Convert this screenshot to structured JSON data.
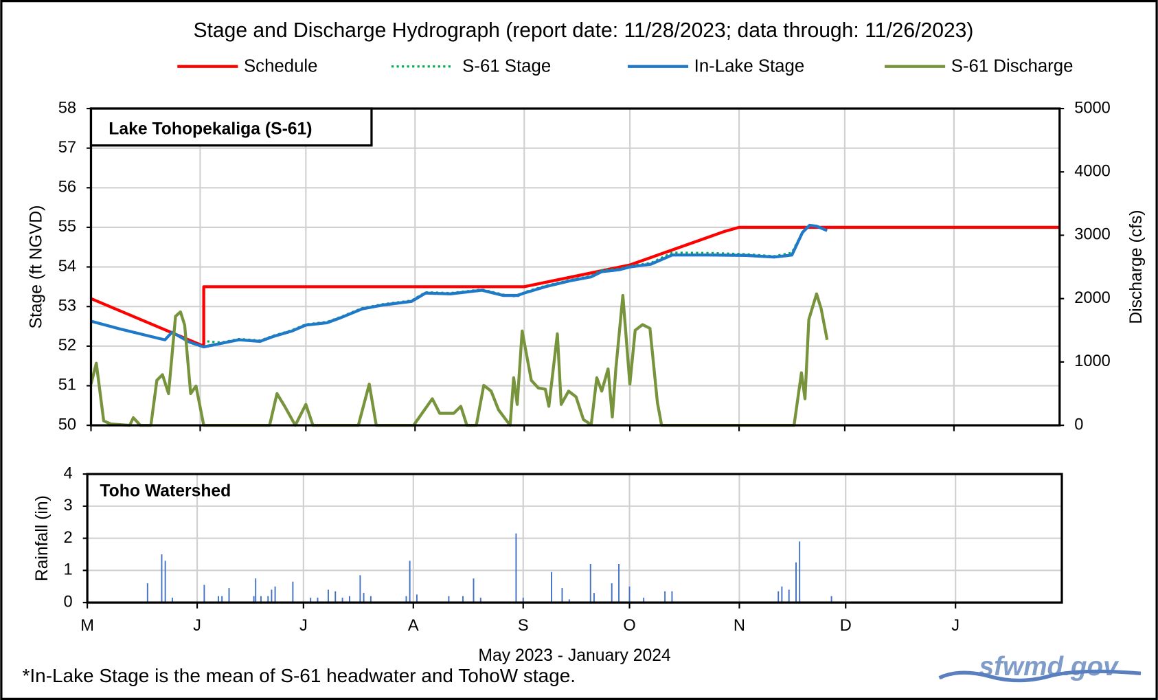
{
  "chart_data": [
    {
      "type": "line",
      "title": "Stage and Discharge Hydrograph  (report date: 11/28/2023; data through:  11/26/2023)",
      "inset_label": "Lake Tohopekaliga  (S-61)",
      "ylabel": "Stage  (ft NGVD)",
      "y2label": "Discharge  (cfs)",
      "xlim": [
        0,
        275
      ],
      "xticks": [
        0,
        31,
        61,
        92,
        123,
        153,
        184,
        214,
        245
      ],
      "ylim": [
        50,
        58
      ],
      "yticks": [
        50,
        51,
        52,
        53,
        54,
        55,
        56,
        57,
        58
      ],
      "y2lim": [
        0,
        5000
      ],
      "y2ticks": [
        0,
        1000,
        2000,
        3000,
        4000,
        5000
      ],
      "grid": true,
      "series": [
        {
          "name": "Schedule",
          "color": "#ff0000",
          "style": "solid",
          "x": [
            0,
            32,
            32,
            123,
            153,
            180,
            184,
            275
          ],
          "values": [
            53.2,
            52.0,
            53.5,
            53.5,
            54.05,
            54.9,
            55.0,
            55.0
          ]
        },
        {
          "name": "S-61 Stage",
          "color": "#00b050",
          "style": "dotted",
          "x": [
            33,
            37,
            42,
            48,
            52,
            57,
            61,
            67,
            71,
            77,
            83,
            91,
            95,
            102,
            111,
            117,
            121,
            123,
            129,
            136,
            142,
            145,
            150,
            153,
            159,
            165,
            176,
            186,
            194,
            199,
            202,
            204,
            206,
            209
          ],
          "values": [
            52.12,
            52.09,
            52.18,
            52.14,
            52.27,
            52.4,
            52.55,
            52.61,
            52.74,
            52.96,
            53.06,
            53.15,
            53.36,
            53.34,
            53.43,
            53.3,
            53.25,
            53.36,
            53.52,
            53.67,
            53.77,
            53.92,
            53.95,
            54.02,
            54.1,
            54.36,
            54.35,
            54.32,
            54.27,
            54.36,
            54.88,
            55.05,
            55.03,
            54.92
          ]
        },
        {
          "name": "In-Lake Stage",
          "color": "#1f78c8",
          "style": "solid",
          "x": [
            0,
            8,
            19,
            21,
            23,
            28,
            32,
            37,
            42,
            48,
            52,
            57,
            61,
            67,
            71,
            77,
            83,
            91,
            95,
            102,
            111,
            117,
            121,
            123,
            129,
            136,
            142,
            145,
            150,
            153,
            159,
            165,
            176,
            186,
            194,
            199,
            202,
            204,
            206,
            209
          ],
          "values": [
            52.63,
            52.44,
            52.2,
            52.16,
            52.35,
            52.1,
            51.98,
            52.07,
            52.16,
            52.12,
            52.25,
            52.38,
            52.53,
            52.59,
            52.72,
            52.94,
            53.04,
            53.13,
            53.34,
            53.32,
            53.41,
            53.28,
            53.28,
            53.34,
            53.5,
            53.65,
            53.75,
            53.88,
            53.93,
            54.0,
            54.07,
            54.3,
            54.3,
            54.29,
            54.25,
            54.3,
            54.87,
            55.05,
            55.03,
            54.92
          ]
        },
        {
          "name": "S-61 Discharge",
          "color": "#77933c",
          "style": "solid",
          "axis": "y2",
          "x": [
            0,
            1.5,
            3.6,
            5.7,
            11,
            12,
            14,
            17,
            18.7,
            20.3,
            22,
            24,
            25.4,
            26.6,
            28.3,
            29.8,
            32,
            50.7,
            52.8,
            55,
            58,
            61,
            63,
            75.9,
            79,
            81,
            91.6,
            96.9,
            99,
            103,
            105,
            106.7,
            109.4,
            111.5,
            113.6,
            115.7,
            119,
            120,
            121,
            122.4,
            125,
            127,
            129,
            130,
            132.4,
            133.5,
            135.6,
            137.7,
            139.8,
            142,
            143.6,
            145,
            146.8,
            148,
            149,
            151,
            153,
            154.5,
            156.6,
            158.7,
            160.8,
            162,
            199.6,
            201.7,
            202.7,
            203.8,
            206,
            207.3,
            209
          ],
          "values": [
            650,
            980,
            70,
            20,
            0,
            120,
            0,
            0,
            710,
            800,
            500,
            1720,
            1790,
            1580,
            500,
            620,
            0,
            0,
            500,
            300,
            0,
            330,
            0,
            0,
            650,
            0,
            0,
            420,
            190,
            190,
            300,
            0,
            0,
            630,
            540,
            245,
            0,
            750,
            330,
            1490,
            710,
            590,
            570,
            300,
            1445,
            330,
            540,
            450,
            90,
            10,
            750,
            540,
            890,
            130,
            890,
            2050,
            650,
            1500,
            1590,
            1530,
            360,
            0,
            0,
            830,
            420,
            1670,
            2075,
            1840,
            1350
          ]
        }
      ]
    },
    {
      "type": "bar",
      "inset_label": "Toho Watershed",
      "ylabel": "Rainfall  (in)",
      "xlabel": "May 2023 - January 2024",
      "xlim": [
        0,
        275
      ],
      "xticks": [
        {
          "value": 0,
          "label": "M"
        },
        {
          "value": 31,
          "label": "J"
        },
        {
          "value": 61,
          "label": "J"
        },
        {
          "value": 92,
          "label": "A"
        },
        {
          "value": 123,
          "label": "S"
        },
        {
          "value": 153,
          "label": "O"
        },
        {
          "value": 184,
          "label": "N"
        },
        {
          "value": 214,
          "label": "D"
        },
        {
          "value": 245,
          "label": "J"
        }
      ],
      "ylim": [
        0,
        4
      ],
      "yticks": [
        0,
        1,
        2,
        3,
        4
      ],
      "grid": true,
      "series": [
        {
          "name": "Rainfall",
          "color": "#4472c4",
          "x": [
            17,
            21,
            22,
            24,
            33,
            37,
            38,
            40,
            47,
            47.5,
            49,
            51,
            52,
            53,
            58,
            63,
            65,
            68,
            70,
            72,
            74,
            77,
            78,
            80,
            90,
            91,
            93,
            102,
            106,
            109,
            111,
            121,
            123,
            131,
            134,
            136,
            142,
            143,
            148,
            150,
            153,
            157,
            163,
            165,
            195,
            196,
            198,
            200,
            201,
            210
          ],
          "values": [
            0.6,
            1.5,
            1.3,
            0.15,
            0.55,
            0.2,
            0.2,
            0.45,
            0.2,
            0.75,
            0.2,
            0.2,
            0.4,
            0.5,
            0.65,
            0.15,
            0.15,
            0.4,
            0.35,
            0.15,
            0.2,
            0.85,
            0.3,
            0.2,
            0.2,
            1.3,
            0.25,
            0.2,
            0.2,
            0.75,
            0.15,
            2.15,
            0.15,
            0.95,
            0.45,
            0.1,
            1.2,
            0.3,
            0.6,
            1.2,
            0.5,
            0.15,
            0.35,
            0.35,
            0.35,
            0.5,
            0.4,
            1.25,
            1.9,
            0.2
          ]
        }
      ]
    }
  ],
  "footnote": "*In-Lake Stage is the mean of S-61 headwater and TohoW stage.",
  "source": "sfwmd.gov"
}
